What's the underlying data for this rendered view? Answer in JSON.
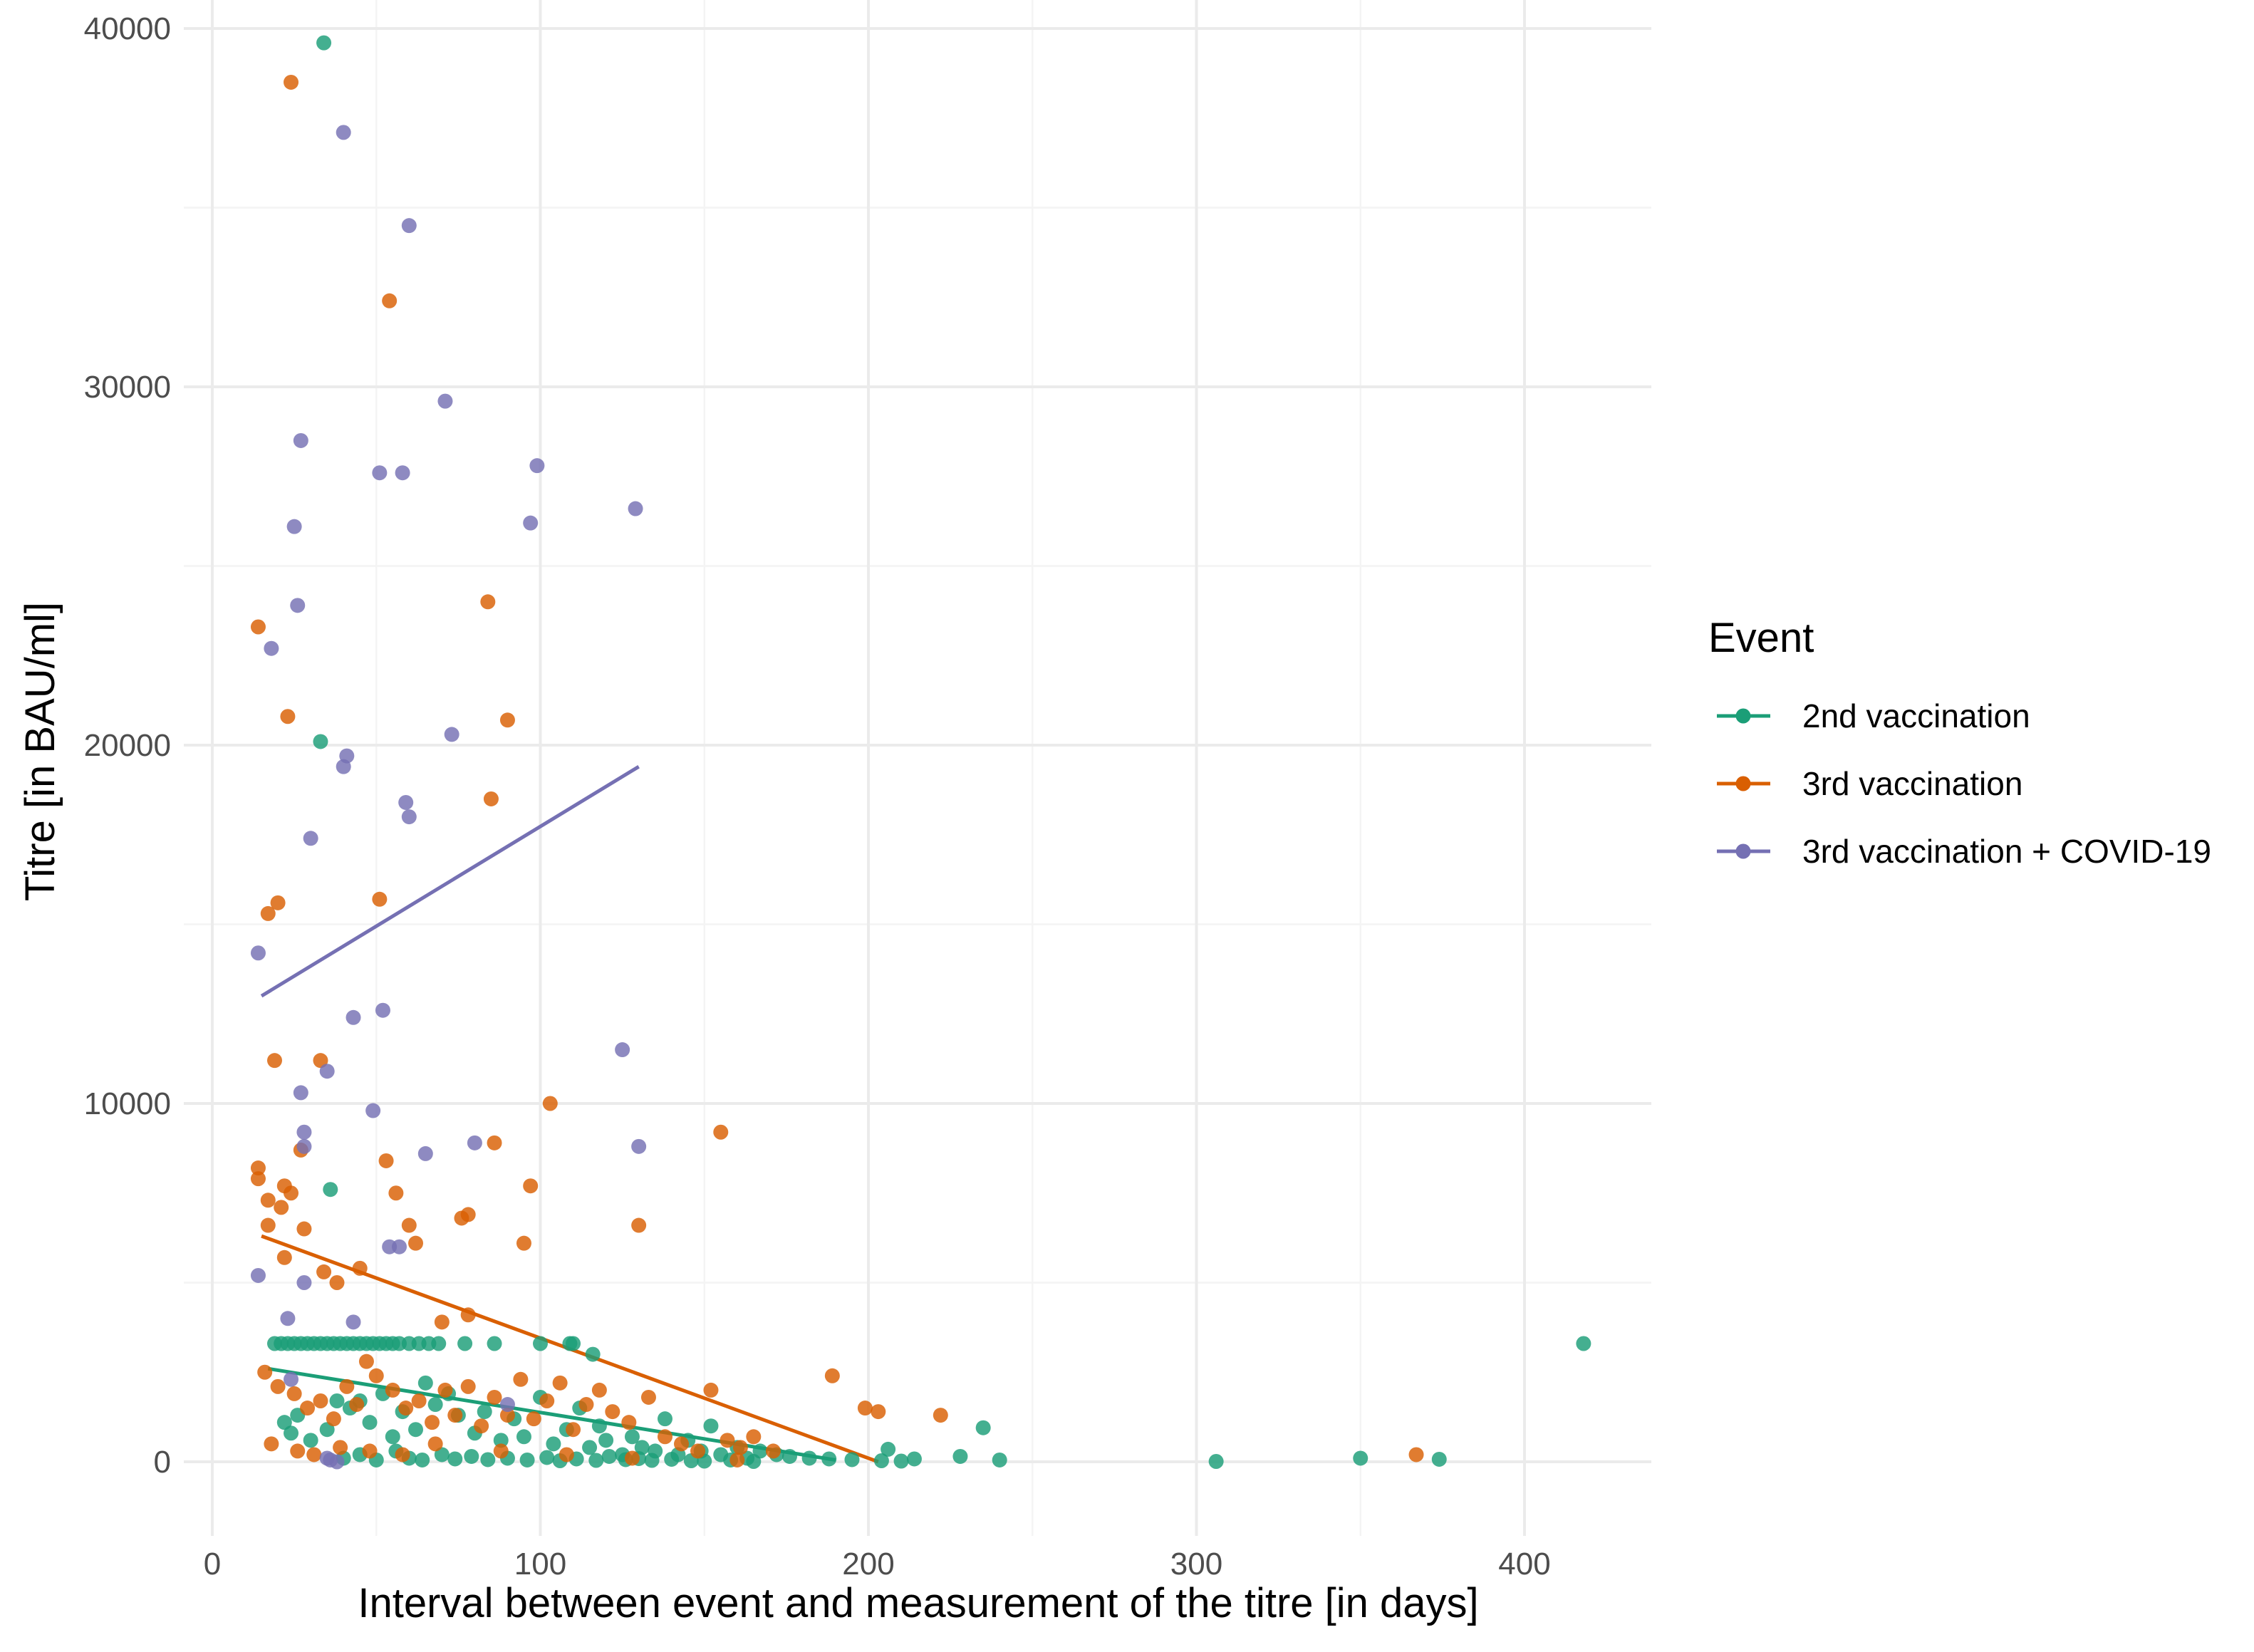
{
  "chart_data": {
    "type": "scatter",
    "title": "",
    "xlabel": "Interval between event and measurement of the titre [in days]",
    "ylabel": "Titre [in BAU/ml]",
    "xlim": [
      -6,
      440
    ],
    "ylim": [
      -2000,
      40000
    ],
    "x_ticks": [
      0,
      100,
      200,
      300,
      400
    ],
    "y_ticks": [
      0,
      10000,
      20000,
      30000,
      40000
    ],
    "x_tick_labels": [
      "0",
      "100",
      "200",
      "300",
      "400"
    ],
    "y_tick_labels": [
      "0",
      "10000",
      "20000",
      "30000",
      "40000"
    ],
    "grid": true,
    "legend": {
      "title": "Event",
      "position": "right"
    },
    "series": [
      {
        "name": "2nd vaccination",
        "color": "#1b9e77",
        "trend": [
          [
            17,
            2600
          ],
          [
            190,
            50
          ]
        ],
        "points": [
          [
            34,
            39600
          ],
          [
            33,
            20100
          ],
          [
            36,
            7600
          ],
          [
            19,
            3300
          ],
          [
            21,
            3300
          ],
          [
            23,
            3300
          ],
          [
            25,
            3300
          ],
          [
            27,
            3300
          ],
          [
            29,
            3300
          ],
          [
            31,
            3300
          ],
          [
            33,
            3300
          ],
          [
            35,
            3300
          ],
          [
            37,
            3300
          ],
          [
            39,
            3300
          ],
          [
            41,
            3300
          ],
          [
            43,
            3300
          ],
          [
            45,
            3300
          ],
          [
            47,
            3300
          ],
          [
            49,
            3300
          ],
          [
            51,
            3300
          ],
          [
            53,
            3300
          ],
          [
            55,
            3300
          ],
          [
            57,
            3300
          ],
          [
            60,
            3300
          ],
          [
            63,
            3300
          ],
          [
            66,
            3300
          ],
          [
            69,
            3300
          ],
          [
            77,
            3300
          ],
          [
            86,
            3300
          ],
          [
            100,
            3300
          ],
          [
            109,
            3300
          ],
          [
            116,
            3000
          ],
          [
            110,
            3300
          ],
          [
            418,
            3300
          ],
          [
            235,
            950
          ],
          [
            206,
            350
          ],
          [
            22,
            1100
          ],
          [
            24,
            800
          ],
          [
            26,
            1300
          ],
          [
            30,
            600
          ],
          [
            35,
            900
          ],
          [
            38,
            1700
          ],
          [
            42,
            1500
          ],
          [
            45,
            1700
          ],
          [
            48,
            1100
          ],
          [
            52,
            1900
          ],
          [
            55,
            700
          ],
          [
            58,
            1400
          ],
          [
            62,
            900
          ],
          [
            65,
            2200
          ],
          [
            68,
            1600
          ],
          [
            72,
            1900
          ],
          [
            75,
            1300
          ],
          [
            80,
            800
          ],
          [
            83,
            1400
          ],
          [
            88,
            600
          ],
          [
            92,
            1200
          ],
          [
            95,
            700
          ],
          [
            100,
            1800
          ],
          [
            104,
            500
          ],
          [
            108,
            900
          ],
          [
            112,
            1500
          ],
          [
            115,
            400
          ],
          [
            118,
            1000
          ],
          [
            120,
            600
          ],
          [
            125,
            200
          ],
          [
            128,
            700
          ],
          [
            131,
            400
          ],
          [
            135,
            300
          ],
          [
            138,
            1200
          ],
          [
            142,
            200
          ],
          [
            145,
            600
          ],
          [
            149,
            300
          ],
          [
            152,
            1000
          ],
          [
            155,
            200
          ],
          [
            160,
            400
          ],
          [
            163,
            100
          ],
          [
            167,
            300
          ],
          [
            172,
            200
          ],
          [
            176,
            150
          ],
          [
            182,
            100
          ],
          [
            188,
            80
          ],
          [
            195,
            60
          ],
          [
            204,
            30
          ],
          [
            210,
            20
          ],
          [
            214,
            80
          ],
          [
            228,
            150
          ],
          [
            240,
            50
          ],
          [
            306,
            10
          ],
          [
            350,
            100
          ],
          [
            374,
            70
          ],
          [
            40,
            100
          ],
          [
            45,
            200
          ],
          [
            50,
            50
          ],
          [
            56,
            300
          ],
          [
            60,
            100
          ],
          [
            64,
            50
          ],
          [
            70,
            200
          ],
          [
            74,
            80
          ],
          [
            79,
            150
          ],
          [
            84,
            60
          ],
          [
            90,
            100
          ],
          [
            96,
            50
          ],
          [
            102,
            120
          ],
          [
            106,
            30
          ],
          [
            111,
            80
          ],
          [
            117,
            40
          ],
          [
            121,
            150
          ],
          [
            126,
            60
          ],
          [
            130,
            90
          ],
          [
            134,
            40
          ],
          [
            140,
            70
          ],
          [
            146,
            30
          ],
          [
            150,
            20
          ],
          [
            158,
            50
          ],
          [
            165,
            10
          ]
        ]
      },
      {
        "name": "3rd vaccination",
        "color": "#d95f02",
        "trend": [
          [
            15,
            6300
          ],
          [
            203,
            0
          ]
        ],
        "points": [
          [
            24,
            38500
          ],
          [
            54,
            32400
          ],
          [
            84,
            24000
          ],
          [
            14,
            23300
          ],
          [
            23,
            20800
          ],
          [
            90,
            20700
          ],
          [
            85,
            18500
          ],
          [
            20,
            15600
          ],
          [
            17,
            15300
          ],
          [
            51,
            15700
          ],
          [
            19,
            11200
          ],
          [
            33,
            11200
          ],
          [
            103,
            10000
          ],
          [
            155,
            9200
          ],
          [
            27,
            8700
          ],
          [
            86,
            8900
          ],
          [
            14,
            8200
          ],
          [
            53,
            8400
          ],
          [
            14,
            7900
          ],
          [
            24,
            7500
          ],
          [
            22,
            7700
          ],
          [
            17,
            7300
          ],
          [
            56,
            7500
          ],
          [
            97,
            7700
          ],
          [
            21,
            7100
          ],
          [
            76,
            6800
          ],
          [
            78,
            6900
          ],
          [
            17,
            6600
          ],
          [
            28,
            6500
          ],
          [
            60,
            6600
          ],
          [
            130,
            6600
          ],
          [
            95,
            6100
          ],
          [
            62,
            6100
          ],
          [
            22,
            5700
          ],
          [
            45,
            5400
          ],
          [
            34,
            5300
          ],
          [
            38,
            5000
          ],
          [
            78,
            4100
          ],
          [
            70,
            3900
          ],
          [
            189,
            2400
          ],
          [
            16,
            2500
          ],
          [
            20,
            2100
          ],
          [
            25,
            1900
          ],
          [
            29,
            1500
          ],
          [
            33,
            1700
          ],
          [
            37,
            1200
          ],
          [
            41,
            2100
          ],
          [
            44,
            1600
          ],
          [
            47,
            2800
          ],
          [
            50,
            2400
          ],
          [
            55,
            2000
          ],
          [
            59,
            1500
          ],
          [
            63,
            1700
          ],
          [
            67,
            1100
          ],
          [
            71,
            2000
          ],
          [
            74,
            1300
          ],
          [
            78,
            2100
          ],
          [
            82,
            1000
          ],
          [
            86,
            1800
          ],
          [
            90,
            1300
          ],
          [
            94,
            2300
          ],
          [
            98,
            1200
          ],
          [
            102,
            1700
          ],
          [
            106,
            2200
          ],
          [
            110,
            900
          ],
          [
            114,
            1600
          ],
          [
            118,
            2000
          ],
          [
            122,
            1400
          ],
          [
            127,
            1100
          ],
          [
            133,
            1800
          ],
          [
            138,
            700
          ],
          [
            143,
            500
          ],
          [
            152,
            2000
          ],
          [
            157,
            600
          ],
          [
            161,
            400
          ],
          [
            165,
            700
          ],
          [
            171,
            300
          ],
          [
            199,
            1500
          ],
          [
            203,
            1400
          ],
          [
            222,
            1300
          ],
          [
            367,
            200
          ],
          [
            18,
            500
          ],
          [
            26,
            300
          ],
          [
            31,
            200
          ],
          [
            39,
            400
          ],
          [
            48,
            300
          ],
          [
            58,
            200
          ],
          [
            68,
            500
          ],
          [
            88,
            300
          ],
          [
            108,
            200
          ],
          [
            128,
            100
          ],
          [
            148,
            300
          ],
          [
            160,
            50
          ]
        ]
      },
      {
        "name": "3rd vaccination + COVID-19",
        "color": "#7570b3",
        "trend": [
          [
            15,
            13000
          ],
          [
            130,
            19400
          ]
        ],
        "points": [
          [
            40,
            37100
          ],
          [
            60,
            34500
          ],
          [
            71,
            29600
          ],
          [
            27,
            28500
          ],
          [
            51,
            27600
          ],
          [
            58,
            27600
          ],
          [
            99,
            27800
          ],
          [
            129,
            26600
          ],
          [
            97,
            26200
          ],
          [
            25,
            26100
          ],
          [
            26,
            23900
          ],
          [
            18,
            22700
          ],
          [
            73,
            20300
          ],
          [
            41,
            19700
          ],
          [
            40,
            19400
          ],
          [
            59,
            18400
          ],
          [
            60,
            18000
          ],
          [
            30,
            17400
          ],
          [
            14,
            14200
          ],
          [
            52,
            12600
          ],
          [
            43,
            12400
          ],
          [
            125,
            11500
          ],
          [
            35,
            10900
          ],
          [
            27,
            10300
          ],
          [
            49,
            9800
          ],
          [
            28,
            9200
          ],
          [
            28,
            8800
          ],
          [
            80,
            8900
          ],
          [
            130,
            8800
          ],
          [
            65,
            8600
          ],
          [
            54,
            6000
          ],
          [
            57,
            6000
          ],
          [
            14,
            5200
          ],
          [
            28,
            5000
          ],
          [
            43,
            3900
          ],
          [
            23,
            4000
          ],
          [
            24,
            2300
          ],
          [
            90,
            1600
          ],
          [
            36,
            50
          ],
          [
            38,
            0
          ],
          [
            35,
            100
          ]
        ]
      }
    ]
  }
}
